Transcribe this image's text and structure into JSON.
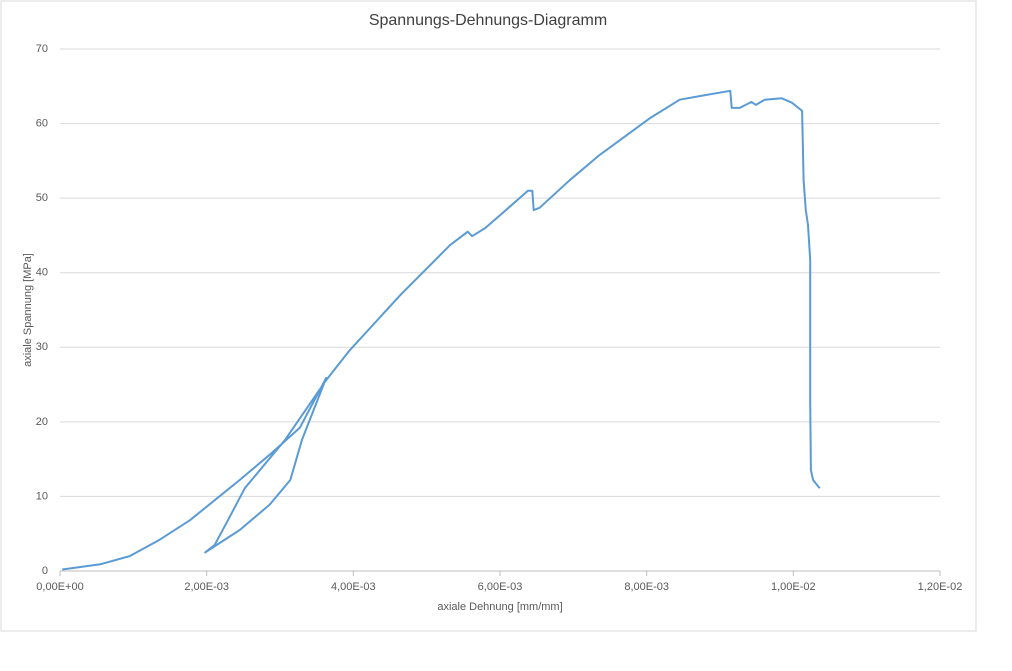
{
  "chart_data": {
    "type": "line",
    "title": "Spannungs-Dehnungs-Diagramm",
    "x_label": "axiale Dehnung [mm/mm]",
    "y_label": "axiale Spannung [MPa]",
    "series": [
      {
        "color": "#5b9bd5",
        "x": [
          3e-05,
          0.00055,
          0.00095,
          0.00136,
          0.00177,
          0.00211,
          0.00245,
          0.00286,
          0.00327,
          0.00363,
          0.0033,
          0.00314,
          0.00286,
          0.00245,
          0.00198,
          0.00211,
          0.00229,
          0.00252,
          0.00307,
          0.00363,
          0.00395,
          0.00464,
          0.00532,
          0.00556,
          0.00562,
          0.0058,
          0.006,
          0.00638,
          0.00644,
          0.00646,
          0.00654,
          0.00695,
          0.00736,
          0.00804,
          0.00845,
          0.00873,
          0.00914,
          0.00916,
          0.00927,
          0.00943,
          0.00949,
          0.00961,
          0.00984,
          0.00998,
          0.01012,
          0.01014,
          0.01017,
          0.0102,
          0.01023,
          0.01023,
          0.01024,
          0.01027,
          0.01036
        ],
        "values": [
          0.2,
          0.9,
          2.0,
          4.2,
          6.8,
          9.5,
          12.2,
          15.6,
          19.2,
          25.9,
          17.6,
          12.2,
          8.9,
          5.5,
          2.5,
          3.5,
          6.8,
          11.1,
          17.6,
          25.6,
          29.6,
          37.0,
          43.7,
          45.5,
          44.9,
          46.0,
          47.7,
          51.0,
          51.0,
          48.4,
          48.7,
          52.4,
          55.8,
          60.7,
          63.2,
          63.7,
          64.4,
          62.1,
          62.1,
          62.9,
          62.5,
          63.2,
          63.4,
          62.8,
          61.7,
          52.4,
          48.4,
          46.4,
          41.7,
          22.9,
          13.5,
          12.2,
          11.1
        ]
      }
    ],
    "xlim": [
      0,
      0.012
    ],
    "xticks": [
      {
        "value": 0,
        "label": "0,00E+00"
      },
      {
        "value": 0.002,
        "label": "2,00E-03"
      },
      {
        "value": 0.004,
        "label": "4,00E-03"
      },
      {
        "value": 0.006,
        "label": "6,00E-03"
      },
      {
        "value": 0.008,
        "label": "8,00E-03"
      },
      {
        "value": 0.01,
        "label": "1,00E-02"
      },
      {
        "value": 0.012,
        "label": "1,20E-02"
      }
    ],
    "ylim": [
      0,
      70
    ],
    "yticks": [
      0,
      10,
      20,
      30,
      40,
      50,
      60,
      70
    ],
    "grid": true
  }
}
